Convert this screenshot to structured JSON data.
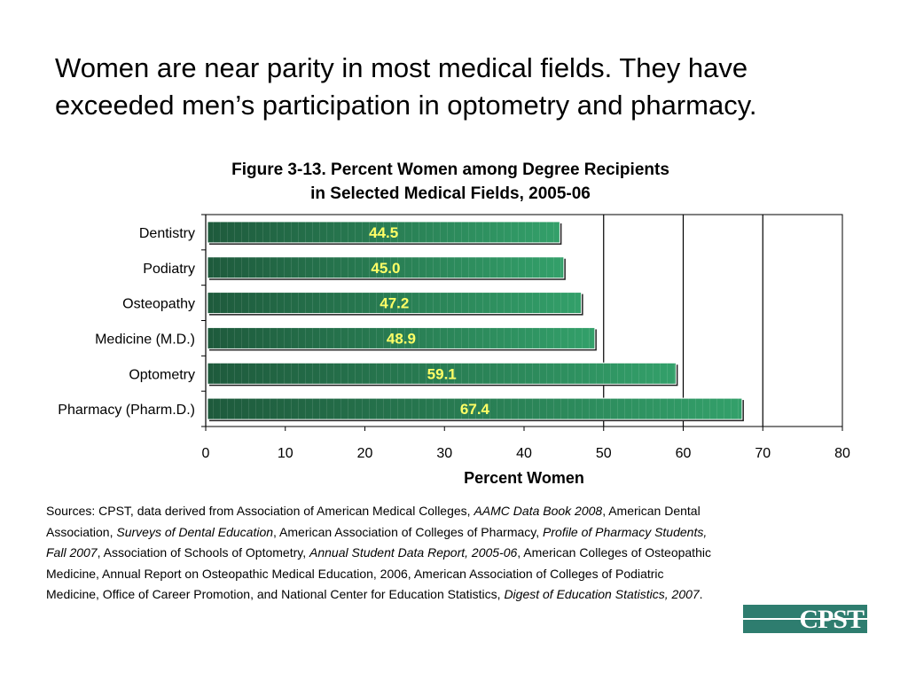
{
  "headline": "Women are near parity in most medical fields. They have exceeded men’s participation in optometry and pharmacy.",
  "colors": {
    "bar_dark": "#1e5a3c",
    "bar_light": "#33a06a",
    "value_label": "#ffff66",
    "logo": "#2e7d6f"
  },
  "chart_data": {
    "type": "bar",
    "orientation": "horizontal",
    "title": "Figure 3-13. Percent Women among Degree Recipients",
    "subtitle": "in Selected Medical Fields, 2005-06",
    "categories": [
      "Dentistry",
      "Podiatry",
      "Osteopathy",
      "Medicine (M.D.)",
      "Optometry",
      "Pharmacy (Pharm.D.)"
    ],
    "values": [
      44.5,
      45.0,
      47.2,
      48.9,
      59.1,
      67.4
    ],
    "value_labels": [
      "44.5",
      "45.0",
      "47.2",
      "48.9",
      "59.1",
      "67.4"
    ],
    "xlabel": "Percent Women",
    "ylabel": "",
    "xlim": [
      0,
      80
    ],
    "xticks": [
      "0",
      "10",
      "20",
      "30",
      "40",
      "50",
      "60",
      "70",
      "80"
    ],
    "grid": "vertical lines at 50, 60, 70"
  },
  "sources": {
    "p1": "Sources: CPST, data derived from Association of American Medical Colleges, ",
    "i1": "AAMC Data Book 2008",
    "p2": ", American Dental Association, ",
    "i2": "Surveys of Dental Education",
    "p3": ", American Association of Colleges of Pharmacy, ",
    "i3": "Profile of Pharmacy Students, Fall 2007",
    "p4": ", Association of Schools of Optometry, ",
    "i4": "Annual Student Data Report, 2005-06",
    "p5": ", American Colleges of Osteopathic Medicine, Annual Report on Osteopathic Medical Education, 2006, American Association of Colleges of Podiatric Medicine, Office of Career Promotion, and National Center for Education Statistics, ",
    "i5": "Digest of Education Statistics, 2007",
    "p6": "."
  },
  "logo": {
    "text": "CPST"
  }
}
